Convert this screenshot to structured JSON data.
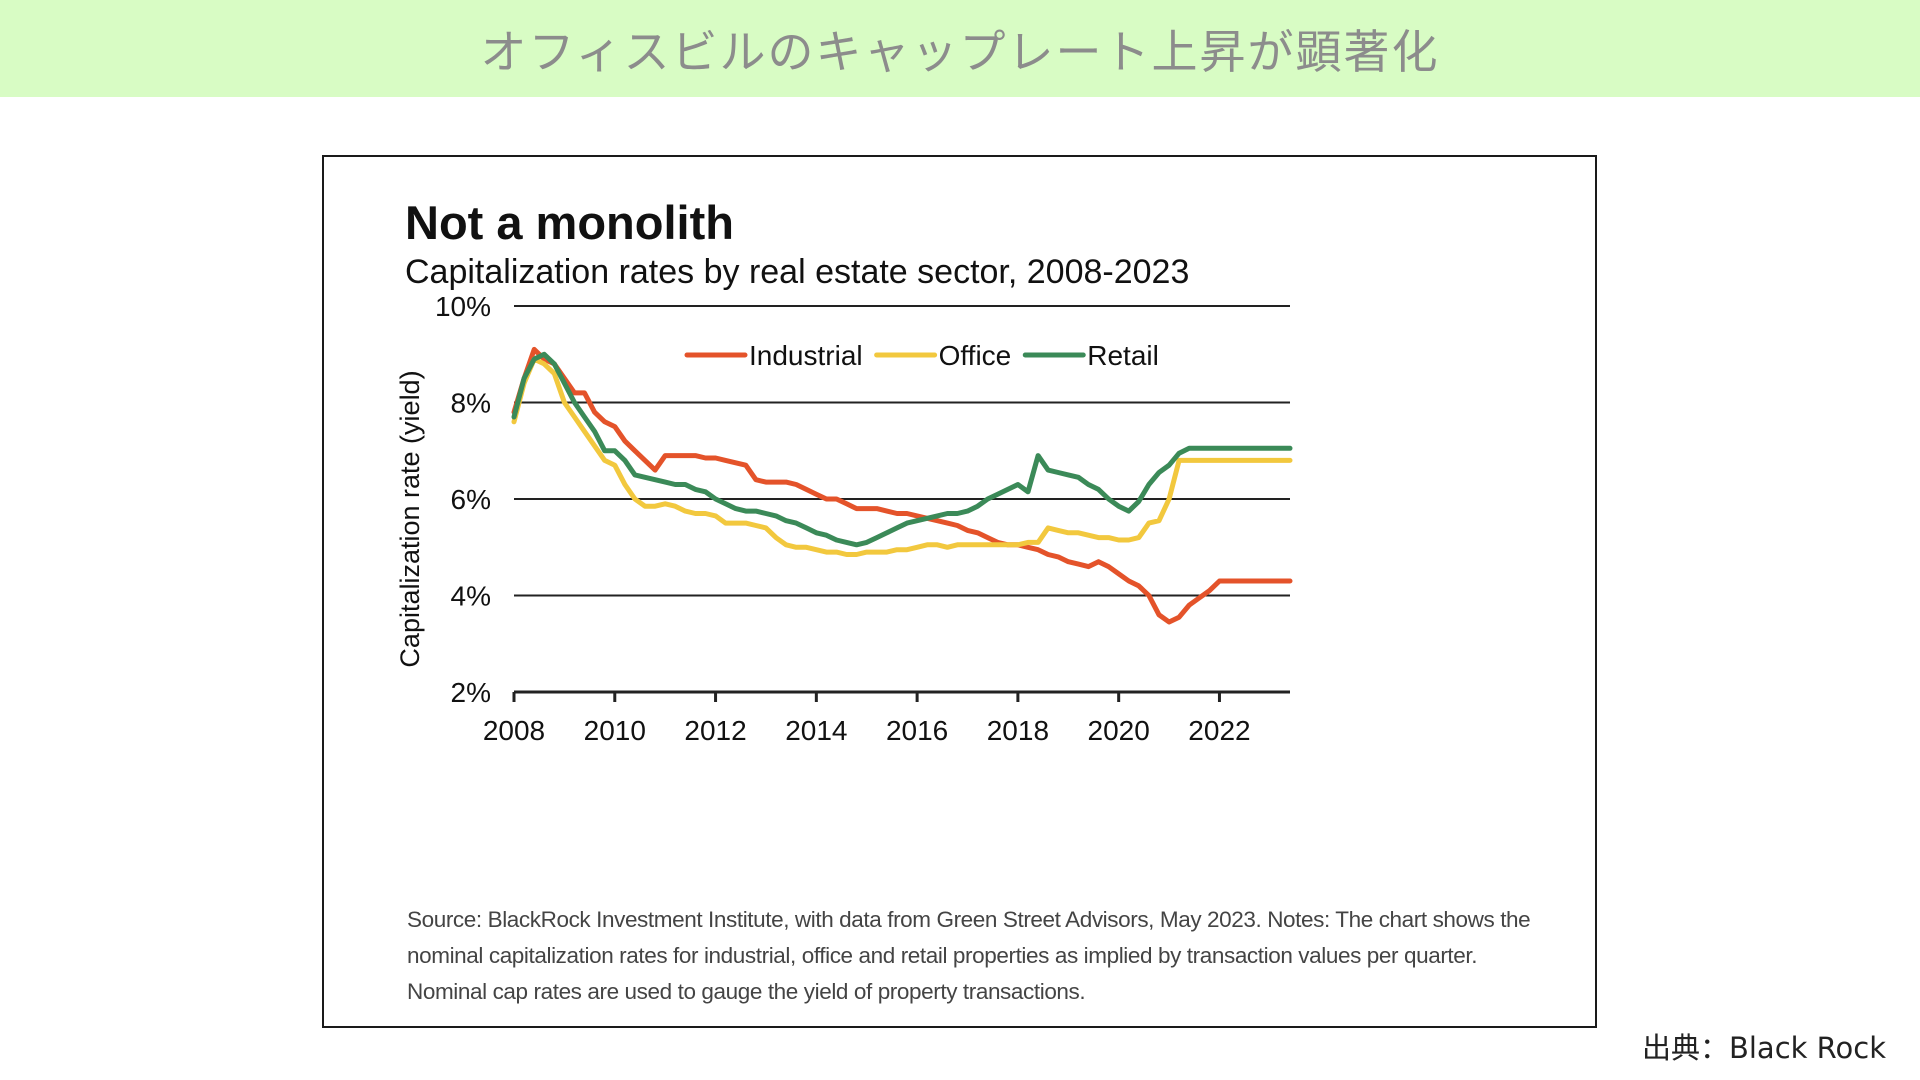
{
  "banner": {
    "title": "オフィスビルのキャップレート上昇が顕著化"
  },
  "credit": "出典：Black Rock",
  "source_note": "Source: BlackRock Investment Institute, with data from Green Street Advisors, May 2023. Notes: The chart shows the nominal capitalization rates for industrial, office and retail properties as implied by transaction values per quarter. Nominal cap rates are used to gauge the yield of property transactions.",
  "chart_data": {
    "type": "line",
    "title": "Not a monolith",
    "subtitle": "Capitalization rates by real estate sector, 2008-2023",
    "xlabel": "",
    "ylabel": "Capitalization rate (yield)",
    "xlim": [
      2008,
      2023.4
    ],
    "ylim": [
      2,
      10
    ],
    "x_ticks": [
      2008,
      2010,
      2012,
      2014,
      2016,
      2018,
      2020,
      2022
    ],
    "x_tick_labels": [
      "2008",
      "2010",
      "2012",
      "2014",
      "2016",
      "2018",
      "2020",
      "2022"
    ],
    "y_ticks": [
      2,
      4,
      6,
      8,
      10
    ],
    "y_tick_labels": [
      "2%",
      "4%",
      "6%",
      "8%",
      "10%"
    ],
    "grid": "horizontal",
    "legend": "top",
    "series": [
      {
        "name": "Industrial",
        "color": "#e4532a",
        "x": [
          2008.0,
          2008.2,
          2008.4,
          2008.6,
          2008.8,
          2009.0,
          2009.2,
          2009.4,
          2009.6,
          2009.8,
          2010.0,
          2010.2,
          2010.4,
          2010.6,
          2010.8,
          2011.0,
          2011.2,
          2011.4,
          2011.6,
          2011.8,
          2012.0,
          2012.2,
          2012.4,
          2012.6,
          2012.8,
          2013.0,
          2013.2,
          2013.4,
          2013.6,
          2013.8,
          2014.0,
          2014.2,
          2014.4,
          2014.6,
          2014.8,
          2015.0,
          2015.2,
          2015.4,
          2015.6,
          2015.8,
          2016.0,
          2016.2,
          2016.4,
          2016.6,
          2016.8,
          2017.0,
          2017.2,
          2017.4,
          2017.6,
          2017.8,
          2018.0,
          2018.2,
          2018.4,
          2018.6,
          2018.8,
          2019.0,
          2019.2,
          2019.4,
          2019.6,
          2019.8,
          2020.0,
          2020.2,
          2020.4,
          2020.6,
          2020.8,
          2021.0,
          2021.2,
          2021.4,
          2021.6,
          2021.8,
          2022.0,
          2022.2,
          2022.4,
          2022.6,
          2022.8,
          2023.0,
          2023.2,
          2023.4
        ],
        "values": [
          7.8,
          8.5,
          9.1,
          8.9,
          8.8,
          8.5,
          8.2,
          8.2,
          7.8,
          7.6,
          7.5,
          7.2,
          7.0,
          6.8,
          6.6,
          6.9,
          6.9,
          6.9,
          6.9,
          6.85,
          6.85,
          6.8,
          6.75,
          6.7,
          6.4,
          6.35,
          6.35,
          6.35,
          6.3,
          6.2,
          6.1,
          6.0,
          6.0,
          5.9,
          5.8,
          5.8,
          5.8,
          5.75,
          5.7,
          5.7,
          5.65,
          5.6,
          5.55,
          5.5,
          5.45,
          5.35,
          5.3,
          5.2,
          5.1,
          5.05,
          5.05,
          5.0,
          4.95,
          4.85,
          4.8,
          4.7,
          4.65,
          4.6,
          4.7,
          4.6,
          4.45,
          4.3,
          4.2,
          4.0,
          3.6,
          3.45,
          3.55,
          3.8,
          3.95,
          4.1,
          4.3,
          4.3,
          4.3,
          4.3,
          4.3,
          4.3,
          4.3,
          4.3
        ]
      },
      {
        "name": "Office",
        "color": "#f2c83e",
        "x": [
          2008.0,
          2008.2,
          2008.4,
          2008.6,
          2008.8,
          2009.0,
          2009.2,
          2009.4,
          2009.6,
          2009.8,
          2010.0,
          2010.2,
          2010.4,
          2010.6,
          2010.8,
          2011.0,
          2011.2,
          2011.4,
          2011.6,
          2011.8,
          2012.0,
          2012.2,
          2012.4,
          2012.6,
          2012.8,
          2013.0,
          2013.2,
          2013.4,
          2013.6,
          2013.8,
          2014.0,
          2014.2,
          2014.4,
          2014.6,
          2014.8,
          2015.0,
          2015.2,
          2015.4,
          2015.6,
          2015.8,
          2016.0,
          2016.2,
          2016.4,
          2016.6,
          2016.8,
          2017.0,
          2017.2,
          2017.4,
          2017.6,
          2017.8,
          2018.0,
          2018.2,
          2018.4,
          2018.6,
          2018.8,
          2019.0,
          2019.2,
          2019.4,
          2019.6,
          2019.8,
          2020.0,
          2020.2,
          2020.4,
          2020.6,
          2020.8,
          2021.0,
          2021.2,
          2021.4,
          2021.6,
          2021.8,
          2022.0,
          2022.2,
          2022.4,
          2022.6,
          2022.8,
          2023.0,
          2023.2,
          2023.4
        ],
        "values": [
          7.6,
          8.4,
          8.9,
          8.8,
          8.6,
          8.0,
          7.7,
          7.4,
          7.1,
          6.8,
          6.7,
          6.3,
          6.0,
          5.85,
          5.85,
          5.9,
          5.85,
          5.75,
          5.7,
          5.7,
          5.65,
          5.5,
          5.5,
          5.5,
          5.45,
          5.4,
          5.2,
          5.05,
          5.0,
          5.0,
          4.95,
          4.9,
          4.9,
          4.85,
          4.85,
          4.9,
          4.9,
          4.9,
          4.95,
          4.95,
          5.0,
          5.05,
          5.05,
          5.0,
          5.05,
          5.05,
          5.05,
          5.05,
          5.05,
          5.05,
          5.05,
          5.1,
          5.1,
          5.4,
          5.35,
          5.3,
          5.3,
          5.25,
          5.2,
          5.2,
          5.15,
          5.15,
          5.2,
          5.5,
          5.55,
          6.0,
          6.8,
          6.8,
          6.8,
          6.8,
          6.8,
          6.8,
          6.8,
          6.8,
          6.8,
          6.8,
          6.8,
          6.8
        ]
      },
      {
        "name": "Retail",
        "color": "#3b8a58",
        "x": [
          2008.0,
          2008.2,
          2008.4,
          2008.6,
          2008.8,
          2009.0,
          2009.2,
          2009.4,
          2009.6,
          2009.8,
          2010.0,
          2010.2,
          2010.4,
          2010.6,
          2010.8,
          2011.0,
          2011.2,
          2011.4,
          2011.6,
          2011.8,
          2012.0,
          2012.2,
          2012.4,
          2012.6,
          2012.8,
          2013.0,
          2013.2,
          2013.4,
          2013.6,
          2013.8,
          2014.0,
          2014.2,
          2014.4,
          2014.6,
          2014.8,
          2015.0,
          2015.2,
          2015.4,
          2015.6,
          2015.8,
          2016.0,
          2016.2,
          2016.4,
          2016.6,
          2016.8,
          2017.0,
          2017.2,
          2017.4,
          2017.6,
          2017.8,
          2018.0,
          2018.2,
          2018.4,
          2018.6,
          2018.8,
          2019.0,
          2019.2,
          2019.4,
          2019.6,
          2019.8,
          2020.0,
          2020.2,
          2020.4,
          2020.6,
          2020.8,
          2021.0,
          2021.2,
          2021.4,
          2021.6,
          2021.8,
          2022.0,
          2022.2,
          2022.4,
          2022.6,
          2022.8,
          2023.0,
          2023.2,
          2023.4
        ],
        "values": [
          7.7,
          8.5,
          8.9,
          9.0,
          8.8,
          8.4,
          8.0,
          7.7,
          7.4,
          7.0,
          7.0,
          6.8,
          6.5,
          6.45,
          6.4,
          6.35,
          6.3,
          6.3,
          6.2,
          6.15,
          6.0,
          5.9,
          5.8,
          5.75,
          5.75,
          5.7,
          5.65,
          5.55,
          5.5,
          5.4,
          5.3,
          5.25,
          5.15,
          5.1,
          5.05,
          5.1,
          5.2,
          5.3,
          5.4,
          5.5,
          5.55,
          5.6,
          5.65,
          5.7,
          5.7,
          5.75,
          5.85,
          6.0,
          6.1,
          6.2,
          6.3,
          6.15,
          6.9,
          6.6,
          6.55,
          6.5,
          6.45,
          6.3,
          6.2,
          6.0,
          5.85,
          5.75,
          5.95,
          6.3,
          6.55,
          6.7,
          6.95,
          7.05,
          7.05,
          7.05,
          7.05,
          7.05,
          7.05,
          7.05,
          7.05,
          7.05,
          7.05,
          7.05
        ]
      }
    ]
  }
}
